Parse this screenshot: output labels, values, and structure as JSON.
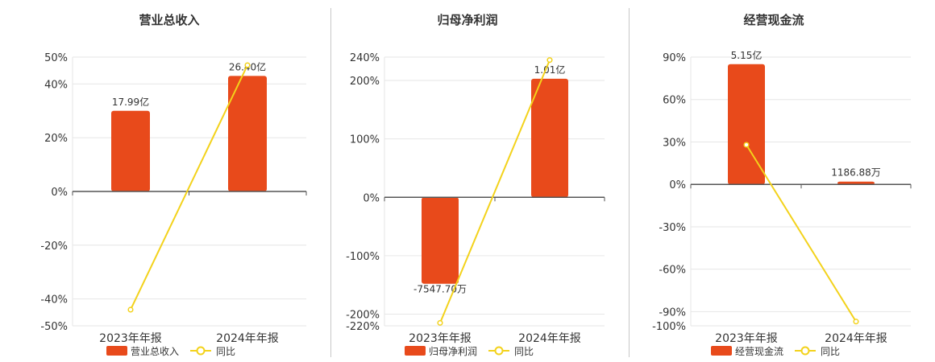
{
  "colors": {
    "bar": "#e84a1b",
    "line": "#f3d21b",
    "axis": "#555555",
    "grid": "#e6e6e6",
    "text": "#333333"
  },
  "chart_data": [
    {
      "type": "bar",
      "title": "营业总收入",
      "categories": [
        "2023年年报",
        "2024年年报"
      ],
      "series": [
        {
          "name": "营业总收入",
          "kind": "bar",
          "values": [
            17.99,
            26.4
          ],
          "labels": [
            "17.99亿",
            "26.40亿"
          ]
        },
        {
          "name": "同比",
          "kind": "line",
          "values": [
            -44,
            47
          ]
        }
      ],
      "ylim": [
        -50,
        50
      ],
      "yticks": [
        50,
        40,
        20,
        0,
        -20,
        -40,
        -50
      ],
      "ytick_labels": [
        "50%",
        "40%",
        "20%",
        "0%",
        "-20%",
        "-40%",
        "-50%"
      ],
      "bar_pct": [
        30,
        43
      ],
      "grid": true,
      "legend": "bottom"
    },
    {
      "type": "bar",
      "title": "归母净利润",
      "categories": [
        "2023年年报",
        "2024年年报"
      ],
      "series": [
        {
          "name": "归母净利润",
          "kind": "bar",
          "values": [
            -0.75477,
            1.01
          ],
          "labels": [
            "-7547.70万",
            "1.01亿"
          ]
        },
        {
          "name": "同比",
          "kind": "line",
          "values": [
            -215,
            235
          ]
        }
      ],
      "ylim": [
        -220,
        240
      ],
      "yticks": [
        240,
        200,
        100,
        0,
        -100,
        -200,
        -220
      ],
      "ytick_labels": [
        "240%",
        "200%",
        "100%",
        "0%",
        "-100%",
        "-200%",
        "-220%"
      ],
      "bar_pct": [
        -148,
        203
      ],
      "grid": true,
      "legend": "bottom"
    },
    {
      "type": "bar",
      "title": "经营现金流",
      "categories": [
        "2023年年报",
        "2024年年报"
      ],
      "series": [
        {
          "name": "经营现金流",
          "kind": "bar",
          "values": [
            5.15,
            0.118688
          ],
          "labels": [
            "5.15亿",
            "1186.88万"
          ]
        },
        {
          "name": "同比",
          "kind": "line",
          "values": [
            28,
            -97
          ]
        }
      ],
      "ylim": [
        -100,
        90
      ],
      "yticks": [
        90,
        60,
        30,
        0,
        -30,
        -60,
        -90,
        -100
      ],
      "ytick_labels": [
        "90%",
        "60%",
        "30%",
        "0%",
        "-30%",
        "-60%",
        "-90%",
        "-100%"
      ],
      "bar_pct": [
        85,
        2
      ],
      "grid": true,
      "legend": "bottom"
    }
  ]
}
